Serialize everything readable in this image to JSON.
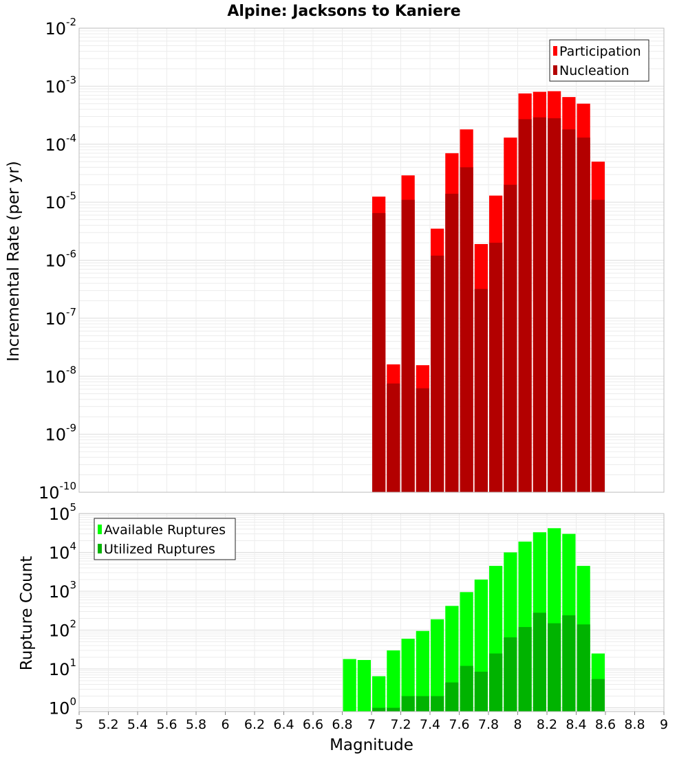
{
  "chart_data": [
    {
      "type": "bar",
      "title": "Alpine: Jacksons to Kaniere",
      "xlabel": "",
      "ylabel": "Incremental Rate (per yr)",
      "yscale": "log",
      "ylim": [
        1e-10,
        0.01
      ],
      "xlim": [
        5,
        9
      ],
      "ytick_exponents": [
        "-10",
        "-9",
        "-8",
        "-7",
        "-6",
        "-5",
        "-4",
        "-3",
        "-2"
      ],
      "legend_position": "top-right",
      "grid": true,
      "x": [
        7.0,
        7.1,
        7.2,
        7.3,
        7.4,
        7.5,
        7.6,
        7.7,
        7.8,
        7.9,
        8.0,
        8.1,
        8.2,
        8.3,
        8.4,
        8.5
      ],
      "series": [
        {
          "name": "Participation",
          "color": "#ff0000",
          "values": [
            1.25e-05,
            1.6e-08,
            2.9e-05,
            1.55e-08,
            3.5e-06,
            7e-05,
            0.00018,
            1.9e-06,
            1.3e-05,
            0.00013,
            0.00075,
            0.0008,
            0.00082,
            0.00065,
            0.0005,
            5e-05
          ]
        },
        {
          "name": "Nucleation",
          "color": "#b30000",
          "values": [
            6.5e-06,
            7.5e-09,
            1.1e-05,
            6.2e-09,
            1.2e-06,
            1.4e-05,
            4e-05,
            3.2e-07,
            2e-06,
            2e-05,
            0.00027,
            0.00029,
            0.00028,
            0.00018,
            0.00013,
            1.1e-05
          ]
        }
      ]
    },
    {
      "type": "bar",
      "title": "",
      "xlabel": "Magnitude",
      "ylabel": "Rupture Count",
      "yscale": "log",
      "ylim": [
        0.8,
        100000.0
      ],
      "xlim": [
        5,
        9
      ],
      "ytick_exponents": [
        "0",
        "1",
        "2",
        "3",
        "4",
        "5"
      ],
      "xtick_labels": [
        "5",
        "5.2",
        "5.4",
        "5.6",
        "5.8",
        "6",
        "6.2",
        "6.4",
        "6.6",
        "6.8",
        "7",
        "7.2",
        "7.4",
        "7.6",
        "7.8",
        "8",
        "8.2",
        "8.4",
        "8.6",
        "8.8",
        "9"
      ],
      "legend_position": "top-left",
      "grid": true,
      "x": [
        6.8,
        6.9,
        7.0,
        7.1,
        7.2,
        7.3,
        7.4,
        7.5,
        7.6,
        7.7,
        7.8,
        7.9,
        8.0,
        8.1,
        8.2,
        8.3,
        8.4,
        8.5
      ],
      "series": [
        {
          "name": "Available Ruptures",
          "color": "#00ff00",
          "values": [
            18,
            17,
            6.5,
            30,
            60,
            95,
            190,
            420,
            950,
            2000,
            4500,
            10000,
            19000,
            33000,
            42000,
            30000,
            4500,
            25
          ]
        },
        {
          "name": "Utilized Ruptures",
          "color": "#00b300",
          "values": [
            0,
            0,
            1,
            1,
            2,
            2,
            2,
            4.5,
            12,
            8.5,
            25,
            65,
            120,
            280,
            150,
            240,
            140,
            5.5
          ]
        }
      ]
    }
  ]
}
